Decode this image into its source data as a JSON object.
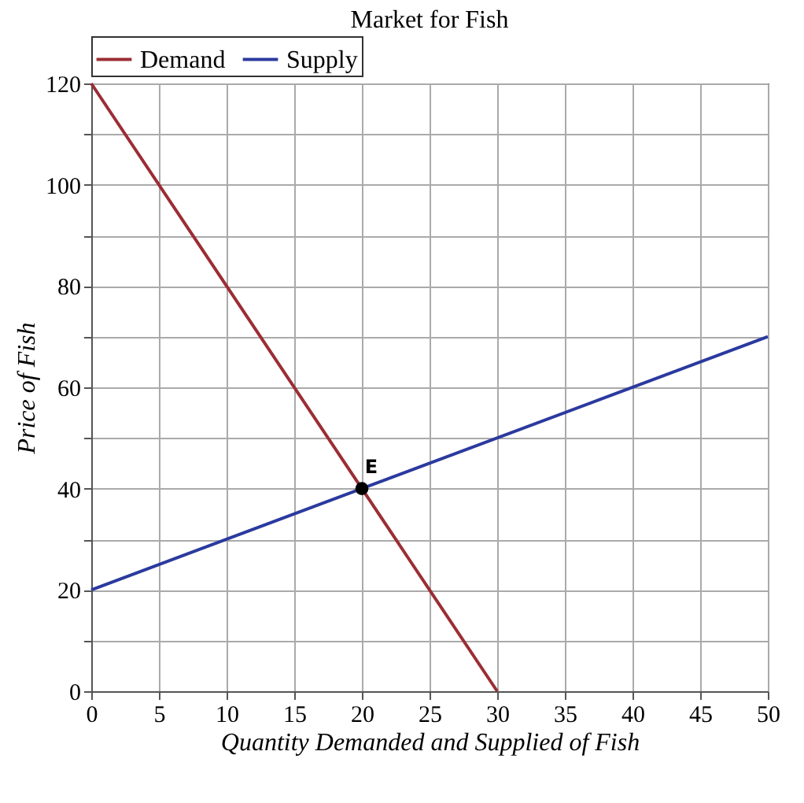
{
  "chart_data": {
    "type": "line",
    "title": "Market for Fish",
    "xlabel": "Quantity Demanded and Supplied of Fish",
    "ylabel": "Price of Fish",
    "xlim": [
      0,
      50
    ],
    "xticks": [
      0,
      5,
      10,
      15,
      20,
      25,
      30,
      35,
      40,
      45,
      50
    ],
    "ylim": [
      0,
      120
    ],
    "yticks": [
      0,
      {
        "value": 10,
        "label": null
      },
      20,
      {
        "value": 30,
        "label": null
      },
      40,
      {
        "value": 50,
        "label": null
      },
      60,
      {
        "value": 70,
        "label": null
      },
      80,
      {
        "value": 90,
        "label": null
      },
      100,
      {
        "value": 110,
        "label": null
      },
      120
    ],
    "grid": true,
    "legend": "top",
    "series": [
      {
        "name": "Demand",
        "color": "#9b2d35",
        "x": [
          0,
          30
        ],
        "values": [
          120,
          0
        ]
      },
      {
        "name": "Supply",
        "color": "#2b3a9e",
        "x": [
          0,
          50
        ],
        "values": [
          20,
          70
        ]
      },
      {
        "type": "scatter",
        "color": "#000000",
        "marker": "circle",
        "x": [
          20
        ],
        "values": [
          40
        ]
      }
    ],
    "annotations": [
      {
        "text": "E",
        "x": 20,
        "y": 40
      }
    ]
  }
}
